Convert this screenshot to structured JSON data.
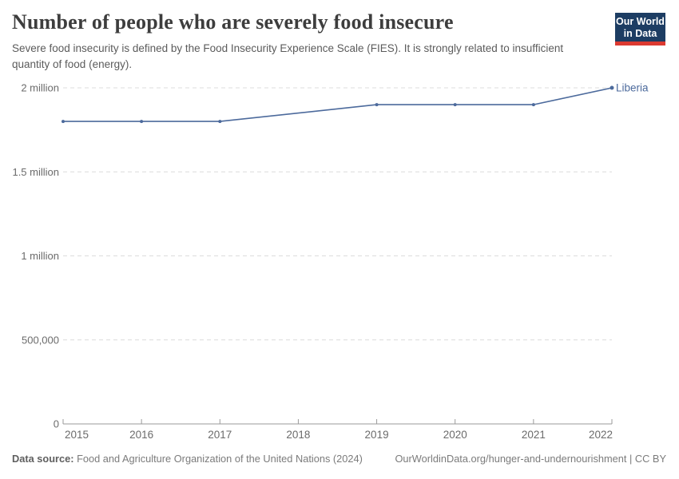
{
  "header": {
    "title": "Number of people who are severely food insecure",
    "subtitle": "Severe food insecurity is defined by the Food Insecurity Experience Scale (FIES). It is strongly related to insufficient quantity of food (energy).",
    "logo": {
      "line1": "Our World",
      "line2": "in Data",
      "bg_color": "#1d3d63",
      "accent_color": "#dc3a31"
    }
  },
  "footer": {
    "source_label": "Data source:",
    "source_text": " Food and Agriculture Organization of the United Nations (2024)",
    "credit": "OurWorldinData.org/hunger-and-undernourishment | CC BY"
  },
  "chart_data": {
    "type": "line",
    "x": [
      2015,
      2016,
      2017,
      2018,
      2019,
      2020,
      2021,
      2022
    ],
    "xticks": [
      "2015",
      "2016",
      "2017",
      "2018",
      "2019",
      "2020",
      "2021",
      "2022"
    ],
    "series": [
      {
        "name": "Liberia",
        "color": "#4c6a9c",
        "values": [
          1800000,
          1800000,
          1800000,
          null,
          1900000,
          1900000,
          1900000,
          2000000
        ]
      }
    ],
    "note": "No marker at 2018; line interpolates between 2017 and 2019",
    "xlim": [
      2015,
      2022
    ],
    "ylim": [
      0,
      2000000
    ],
    "yticks": [
      {
        "value": 0,
        "label": "0"
      },
      {
        "value": 500000,
        "label": "500,000"
      },
      {
        "value": 1000000,
        "label": "1 million"
      },
      {
        "value": 1500000,
        "label": "1.5 million"
      },
      {
        "value": 2000000,
        "label": "2 million"
      }
    ],
    "grid": "horizontal-dashed",
    "legend_position": "end-of-line-label"
  }
}
